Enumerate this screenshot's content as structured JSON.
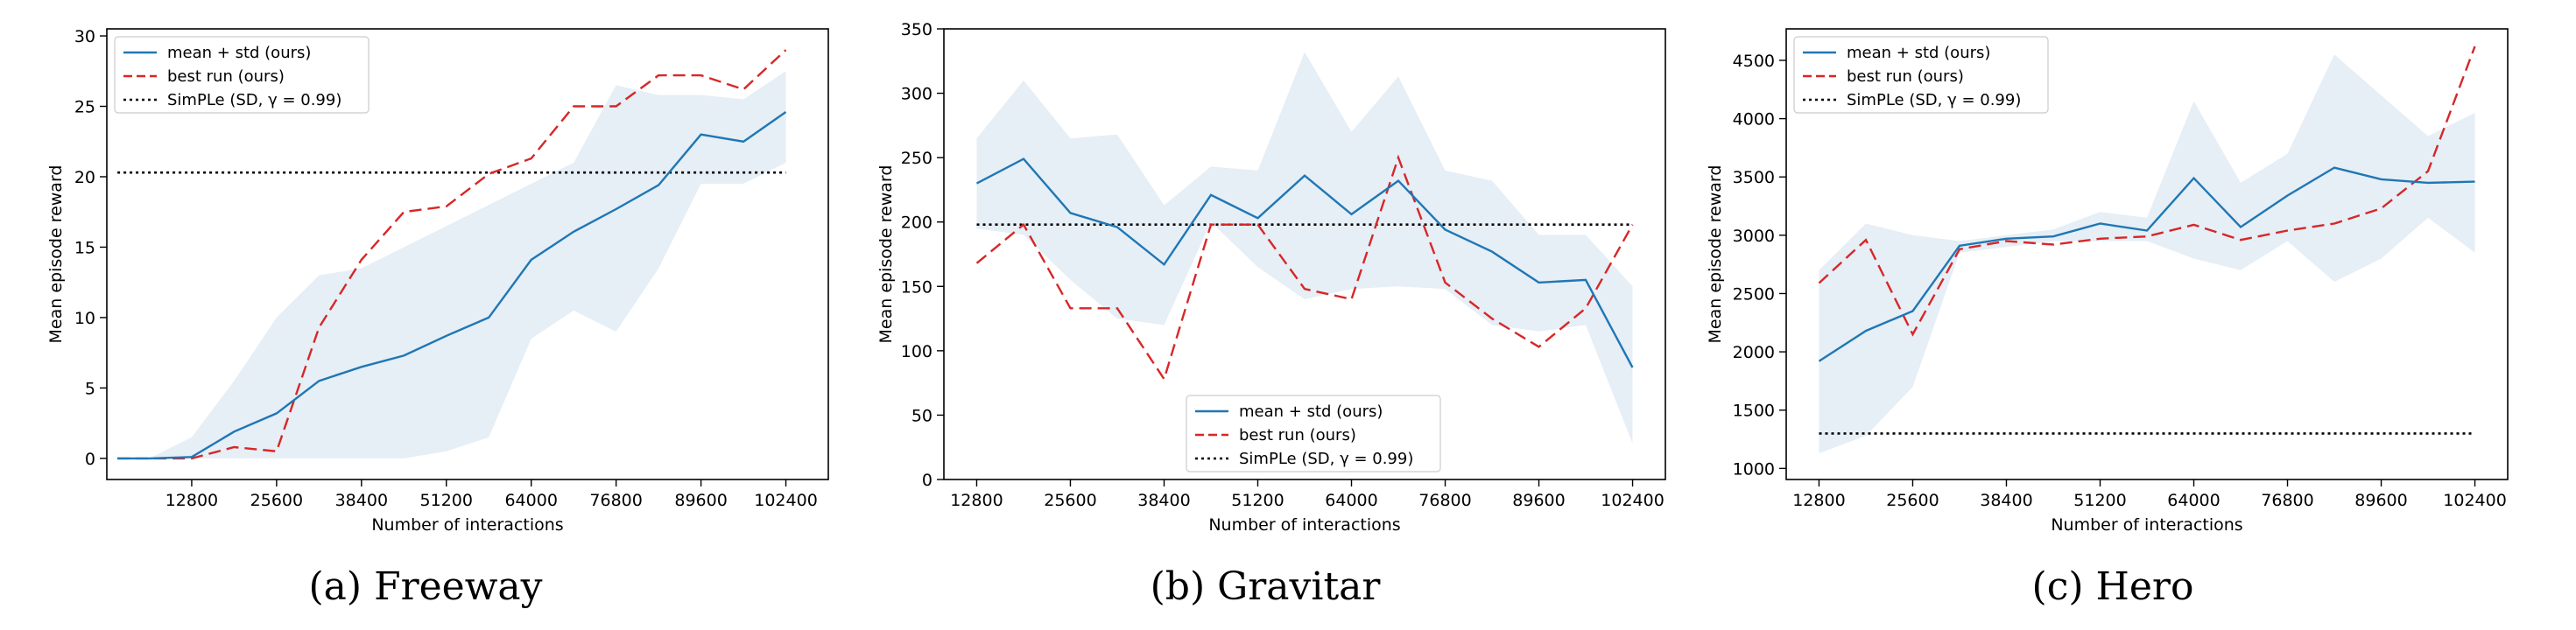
{
  "colors": {
    "mean": "#1f77b4",
    "best": "#d62728",
    "simple": "#000000",
    "band": "#e6eef6"
  },
  "chart_data": [
    {
      "type": "line",
      "caption": "(a) Freeway",
      "xlabel": "Number of interactions",
      "ylabel": "Mean episode reward",
      "xlim": [
        0,
        108800
      ],
      "ylim": [
        -1.5,
        30.5
      ],
      "xticks": [
        12800,
        25600,
        38400,
        51200,
        64000,
        76800,
        89600,
        102400
      ],
      "yticks": [
        0,
        5,
        10,
        15,
        20,
        25,
        30
      ],
      "grid": false,
      "legend": "top-left",
      "x": [
        1600,
        6400,
        12800,
        19200,
        25600,
        32000,
        38400,
        44800,
        51200,
        57600,
        64000,
        70400,
        76800,
        83200,
        89600,
        96000,
        102400
      ],
      "band": {
        "x": [
          1600,
          6400,
          12800,
          19200,
          25600,
          32000,
          38400,
          44800,
          51200,
          57600,
          64000,
          70400,
          76800,
          83200,
          89600,
          96000,
          102400
        ],
        "upper": [
          0,
          0,
          1.5,
          5.5,
          10,
          13,
          13.5,
          15,
          16.5,
          18,
          19.5,
          21,
          26.5,
          25.8,
          25.8,
          25.5,
          27.5
        ],
        "lower": [
          0,
          0,
          0,
          0,
          0,
          0,
          0,
          0,
          0.5,
          1.5,
          8.5,
          10.5,
          9,
          13.5,
          19.5,
          19.5,
          21
        ]
      },
      "series": [
        {
          "name": "mean + std (ours)",
          "style": "solid",
          "values": [
            0,
            0,
            0.1,
            1.9,
            3.2,
            5.5,
            6.5,
            7.3,
            8.7,
            10,
            14.1,
            16.1,
            17.7,
            19.4,
            23,
            22.5,
            24.6
          ]
        },
        {
          "name": "best run (ours)",
          "style": "dashed",
          "values": [
            0,
            0,
            0,
            0.8,
            0.5,
            9.3,
            14.1,
            17.5,
            17.9,
            20.2,
            21.3,
            25,
            25,
            27.2,
            27.2,
            26.2,
            29
          ]
        },
        {
          "name": "SimPLe (SD, γ = 0.99)",
          "style": "dotted",
          "values": [
            20.3,
            20.3,
            20.3,
            20.3,
            20.3,
            20.3,
            20.3,
            20.3,
            20.3,
            20.3,
            20.3,
            20.3,
            20.3,
            20.3,
            20.3,
            20.3,
            20.3
          ]
        }
      ]
    },
    {
      "type": "line",
      "caption": "(b) Gravitar",
      "xlabel": "Number of interactions",
      "ylabel": "Mean episode reward",
      "xlim": [
        8320,
        106880
      ],
      "ylim": [
        0,
        350
      ],
      "xticks": [
        12800,
        25600,
        38400,
        51200,
        64000,
        76800,
        89600,
        102400
      ],
      "yticks": [
        0,
        50,
        100,
        150,
        200,
        250,
        300,
        350
      ],
      "grid": false,
      "legend": "bottom-center",
      "x": [
        12800,
        19200,
        25600,
        32000,
        38400,
        44800,
        51200,
        57600,
        64000,
        70400,
        76800,
        83200,
        89600,
        96000,
        102400
      ],
      "band": {
        "x": [
          12800,
          19200,
          25600,
          32000,
          38400,
          44800,
          51200,
          57600,
          64000,
          70400,
          76800,
          83200,
          89600,
          96000,
          102400
        ],
        "upper": [
          265,
          310,
          265,
          268,
          213,
          243,
          240,
          332,
          270,
          313,
          240,
          232,
          190,
          190,
          150
        ],
        "lower": [
          195,
          190,
          155,
          125,
          120,
          200,
          165,
          140,
          148,
          150,
          148,
          120,
          115,
          120,
          28
        ]
      },
      "series": [
        {
          "name": "mean + std (ours)",
          "style": "solid",
          "values": [
            230,
            249,
            207,
            196,
            167,
            221,
            203,
            236,
            206,
            232,
            194,
            177,
            153,
            155,
            87
          ]
        },
        {
          "name": "best run (ours)",
          "style": "dashed",
          "values": [
            168,
            198,
            133,
            133,
            78,
            198,
            198,
            148,
            140,
            250,
            153,
            125,
            103,
            133,
            198
          ]
        },
        {
          "name": "SimPLe (SD, γ = 0.99)",
          "style": "dotted",
          "values": [
            198,
            198,
            198,
            198,
            198,
            198,
            198,
            198,
            198,
            198,
            198,
            198,
            198,
            198,
            198
          ]
        }
      ]
    },
    {
      "type": "line",
      "caption": "(c) Hero",
      "xlabel": "Number of interactions",
      "ylabel": "Mean episode reward",
      "xlim": [
        8320,
        106880
      ],
      "ylim": [
        905,
        4770
      ],
      "xticks": [
        12800,
        25600,
        38400,
        51200,
        64000,
        76800,
        89600,
        102400
      ],
      "yticks": [
        1000,
        1500,
        2000,
        2500,
        3000,
        3500,
        4000,
        4500
      ],
      "grid": false,
      "legend": "top-left",
      "x": [
        12800,
        19200,
        25600,
        32000,
        38400,
        44800,
        51200,
        57600,
        64000,
        70400,
        76800,
        83200,
        89600,
        96000,
        102400
      ],
      "band": {
        "x": [
          12800,
          19200,
          25600,
          32000,
          38400,
          44800,
          51200,
          57600,
          64000,
          70400,
          76800,
          83200,
          89600,
          96000,
          102400
        ],
        "upper": [
          2700,
          3100,
          3000,
          2950,
          3000,
          3050,
          3200,
          3150,
          4150,
          3450,
          3700,
          4550,
          4200,
          3850,
          4050
        ],
        "lower": [
          1130,
          1280,
          1700,
          2850,
          2900,
          2950,
          2950,
          2950,
          2800,
          2700,
          2950,
          2600,
          2800,
          3150,
          2850
        ]
      },
      "series": [
        {
          "name": "mean + std (ours)",
          "style": "solid",
          "values": [
            1920,
            2180,
            2350,
            2910,
            2970,
            2990,
            3100,
            3040,
            3490,
            3070,
            3340,
            3580,
            3480,
            3450,
            3460
          ]
        },
        {
          "name": "best run (ours)",
          "style": "dashed",
          "values": [
            2590,
            2960,
            2150,
            2880,
            2950,
            2920,
            2970,
            2990,
            3090,
            2960,
            3040,
            3100,
            3230,
            3550,
            4620
          ]
        },
        {
          "name": "SimPLe (SD, γ = 0.99)",
          "style": "dotted",
          "values": [
            1300,
            1300,
            1300,
            1300,
            1300,
            1300,
            1300,
            1300,
            1300,
            1300,
            1300,
            1300,
            1300,
            1300,
            1300
          ]
        }
      ]
    }
  ]
}
